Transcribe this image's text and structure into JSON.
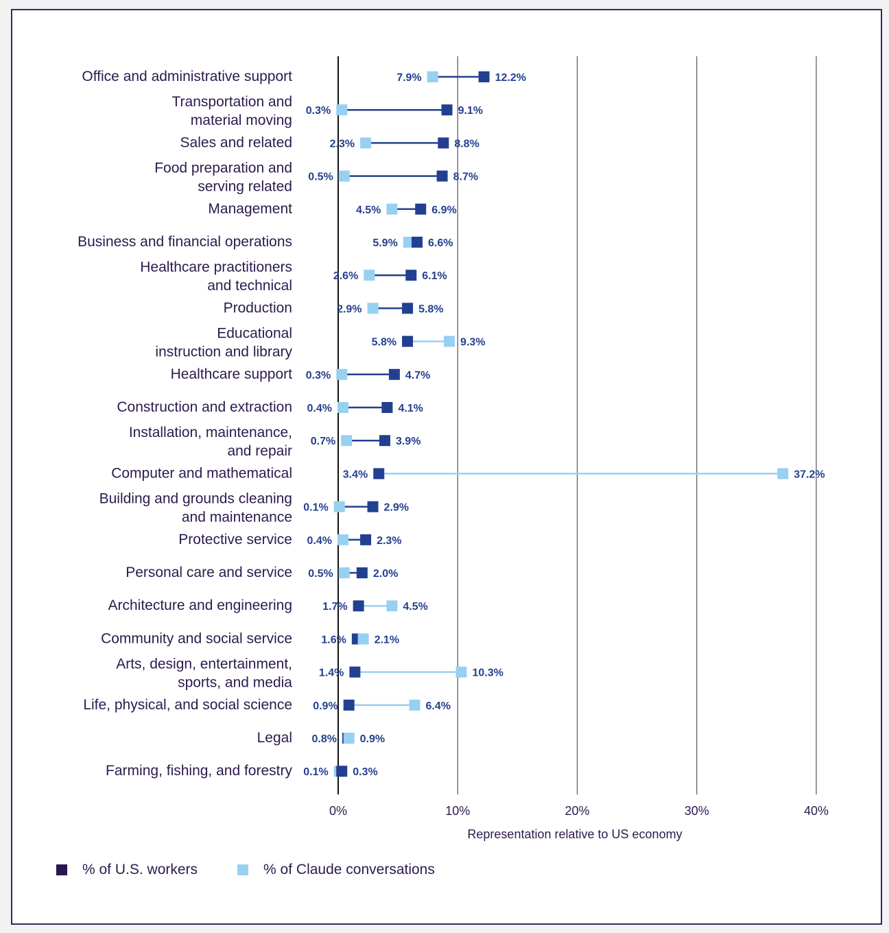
{
  "colors": {
    "workers": "#22408f",
    "claude": "#98d0f2",
    "workers_legend": "#2c1450",
    "text": "#2c1a4d",
    "value_text": "#24408e",
    "frame": "#3b2463"
  },
  "chart_data": {
    "type": "dumbbell",
    "title": "",
    "xlabel": "Representation relative to US economy",
    "ylabel": "",
    "xlim": [
      0,
      40
    ],
    "xticks": [
      0,
      10,
      20,
      30,
      40
    ],
    "xtick_labels": [
      "0%",
      "10%",
      "20%",
      "30%",
      "40%"
    ],
    "grid": "vertical",
    "legend_position": "bottom-left",
    "series": [
      {
        "key": "workers",
        "name": "% of U.S. workers"
      },
      {
        "key": "claude",
        "name": "% of Claude conversations"
      }
    ],
    "categories": [
      {
        "label": [
          "Office and administrative support"
        ],
        "workers": 12.2,
        "claude": 7.9
      },
      {
        "label": [
          "Transportation and",
          "material moving"
        ],
        "workers": 9.1,
        "claude": 0.3
      },
      {
        "label": [
          "Sales and related"
        ],
        "workers": 8.8,
        "claude": 2.3
      },
      {
        "label": [
          "Food preparation and",
          "serving related"
        ],
        "workers": 8.7,
        "claude": 0.5
      },
      {
        "label": [
          "Management"
        ],
        "workers": 6.9,
        "claude": 4.5
      },
      {
        "label": [
          "Business and financial operations"
        ],
        "workers": 6.6,
        "claude": 5.9
      },
      {
        "label": [
          "Healthcare practitioners",
          "and technical"
        ],
        "workers": 6.1,
        "claude": 2.6
      },
      {
        "label": [
          "Production"
        ],
        "workers": 5.8,
        "claude": 2.9
      },
      {
        "label": [
          "Educational",
          "instruction and library"
        ],
        "workers": 5.8,
        "claude": 9.3
      },
      {
        "label": [
          "Healthcare support"
        ],
        "workers": 4.7,
        "claude": 0.3
      },
      {
        "label": [
          "Construction and extraction"
        ],
        "workers": 4.1,
        "claude": 0.4
      },
      {
        "label": [
          "Installation, maintenance,",
          "and repair"
        ],
        "workers": 3.9,
        "claude": 0.7
      },
      {
        "label": [
          "Computer and mathematical"
        ],
        "workers": 3.4,
        "claude": 37.2
      },
      {
        "label": [
          "Building and grounds cleaning",
          "and maintenance"
        ],
        "workers": 2.9,
        "claude": 0.1
      },
      {
        "label": [
          "Protective service"
        ],
        "workers": 2.3,
        "claude": 0.4
      },
      {
        "label": [
          "Personal care and service"
        ],
        "workers": 2.0,
        "claude": 0.5
      },
      {
        "label": [
          "Architecture and engineering"
        ],
        "workers": 1.7,
        "claude": 4.5
      },
      {
        "label": [
          "Community and social service"
        ],
        "workers": 1.6,
        "claude": 2.1
      },
      {
        "label": [
          "Arts, design, entertainment,",
          "sports, and media"
        ],
        "workers": 1.4,
        "claude": 10.3
      },
      {
        "label": [
          "Life, physical, and social science"
        ],
        "workers": 0.9,
        "claude": 6.4
      },
      {
        "label": [
          "Legal"
        ],
        "workers": 0.8,
        "claude": 0.9
      },
      {
        "label": [
          "Farming, fishing, and forestry"
        ],
        "workers": 0.3,
        "claude": 0.1
      }
    ]
  },
  "legend": {
    "workers_label": "% of U.S. workers",
    "claude_label": "% of Claude conversations"
  }
}
